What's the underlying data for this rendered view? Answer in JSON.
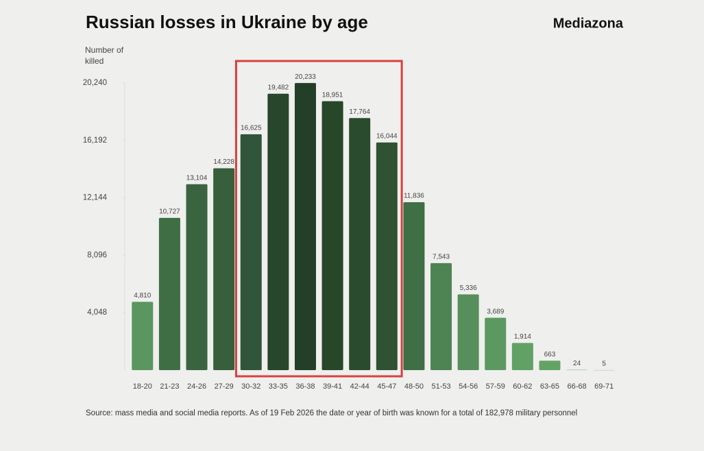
{
  "chart_data": {
    "type": "bar",
    "title": "Russian losses in Ukraine by age",
    "brand": "Mediazona",
    "y_label": "Number of killed",
    "source": "Source: mass media and social media reports. As of 19 Feb 2026 the date or year of birth was known for a total of 182,978 military personnel",
    "categories": [
      "18-20",
      "21-23",
      "24-26",
      "27-29",
      "30-32",
      "33-35",
      "36-38",
      "39-41",
      "42-44",
      "45-47",
      "48-50",
      "51-53",
      "54-56",
      "57-59",
      "60-62",
      "63-65",
      "66-68",
      "69-71"
    ],
    "values": [
      4810,
      10727,
      13104,
      14228,
      16625,
      19482,
      20233,
      18951,
      17764,
      16044,
      11836,
      7543,
      5336,
      3689,
      1914,
      663,
      24,
      5
    ],
    "value_labels": [
      "4,810",
      "10,727",
      "13,104",
      "14,228",
      "16,625",
      "19,482",
      "20,233",
      "18,951",
      "17,764",
      "16,044",
      "11,836",
      "7,543",
      "5,336",
      "3,689",
      "1,914",
      "663",
      "24",
      "5"
    ],
    "colors": [
      "#5a9660",
      "#3f6e44",
      "#3a6440",
      "#375f3c",
      "#30553a",
      "#27462c",
      "#233f27",
      "#274729",
      "#2a4b2e",
      "#2f5233",
      "#3f6f44",
      "#4e8454",
      "#568f5b",
      "#5c9961",
      "#61a165",
      "#63a466",
      "#8fbf92",
      "#a8cfab"
    ],
    "ylim": [
      0,
      20240
    ],
    "yticks": [
      {
        "value": 4048,
        "label": "4,048"
      },
      {
        "value": 8096,
        "label": "8,096"
      },
      {
        "value": 12144,
        "label": "12,144"
      },
      {
        "value": 16192,
        "label": "16,192"
      },
      {
        "value": 20240,
        "label": "20,240"
      }
    ],
    "highlight": {
      "categories": [
        "30-32",
        "45-47"
      ],
      "color": "#d94040"
    }
  }
}
